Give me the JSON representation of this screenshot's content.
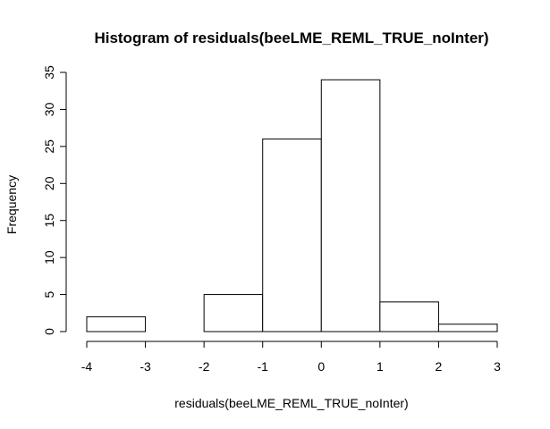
{
  "chart_data": {
    "type": "bar",
    "subtype": "histogram",
    "title": "Histogram of residuals(beeLME_REML_TRUE_noInter)",
    "xlabel": "residuals(beeLME_REML_TRUE_noInter)",
    "ylabel": "Frequency",
    "bins": [
      {
        "from": -4,
        "to": -3,
        "count": 2
      },
      {
        "from": -3,
        "to": -2,
        "count": 0
      },
      {
        "from": -2,
        "to": -1,
        "count": 5
      },
      {
        "from": -1,
        "to": 0,
        "count": 26
      },
      {
        "from": 0,
        "to": 1,
        "count": 34
      },
      {
        "from": 1,
        "to": 2,
        "count": 4
      },
      {
        "from": 2,
        "to": 3,
        "count": 1
      }
    ],
    "xlim": [
      -4,
      3
    ],
    "ylim": [
      0,
      35
    ],
    "xticks": [
      -4,
      -3,
      -2,
      -1,
      0,
      1,
      2,
      3
    ],
    "yticks": [
      0,
      5,
      10,
      15,
      20,
      25,
      30,
      35
    ],
    "grid": false,
    "legend": "none",
    "colors": {
      "bar_fill": "#ffffff",
      "bar_stroke": "#000000"
    }
  }
}
